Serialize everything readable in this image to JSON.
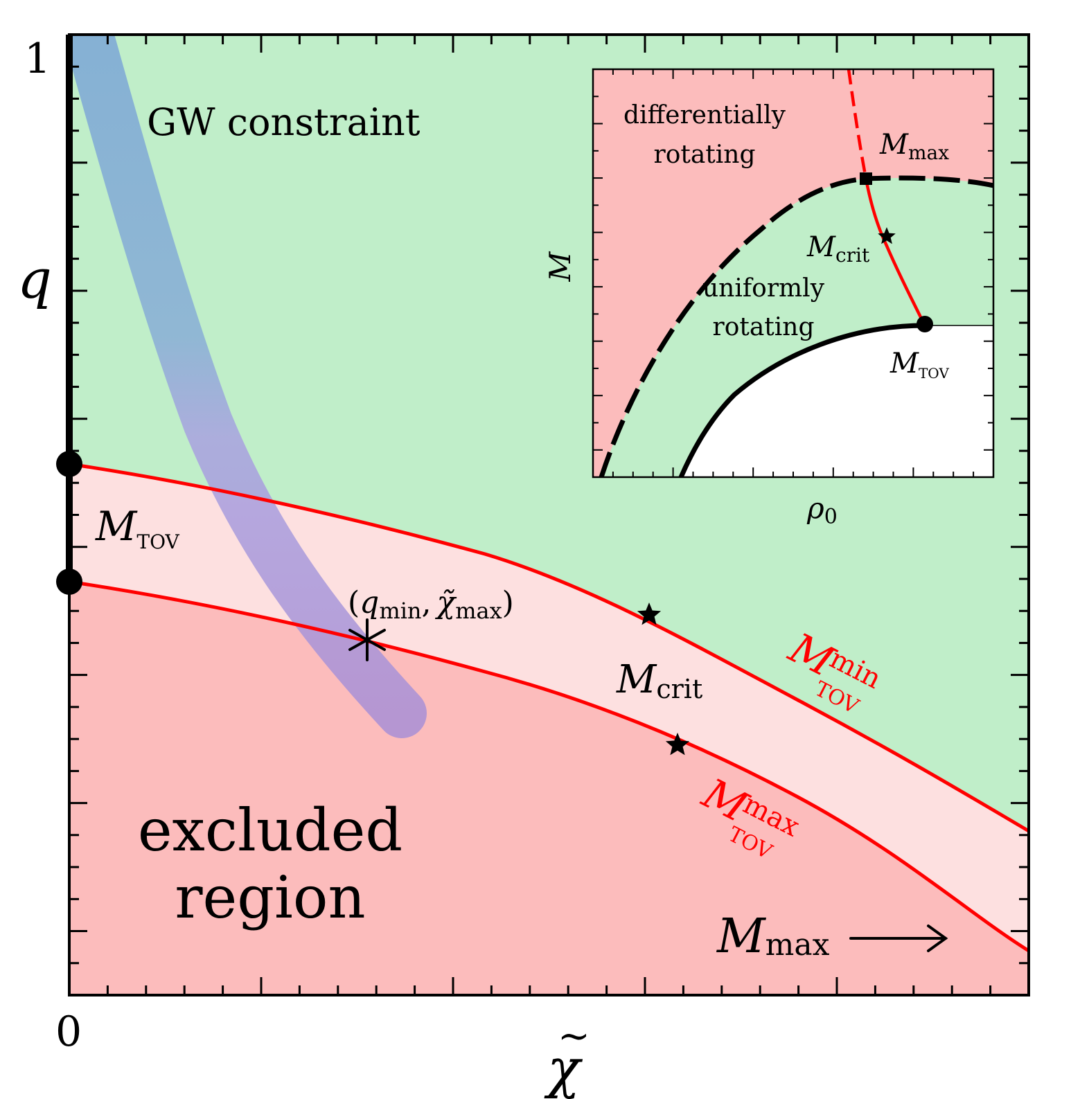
{
  "colors": {
    "allowed_green": "#c0eec9",
    "excluded_red": "#fcbcbc",
    "band_pink": "#fde0e0",
    "curve_red": "#ff0000",
    "gw_blue": "#7ba6d6",
    "gw_violet": "#a990d6",
    "axis_black": "#000000"
  },
  "main": {
    "y_axis": {
      "label": "q",
      "tick_top": "1",
      "tick_bottom": "0"
    },
    "x_axis": {
      "label_base": "χ",
      "label_accent": "~"
    },
    "region_labels": {
      "gw_constraint": "GW constraint",
      "excluded_line1": "excluded",
      "excluded_line2": "region"
    },
    "labels": {
      "m_tov_base": "M",
      "m_tov_sub": "TOV",
      "qmin_chimax": "(q",
      "qmin_sub": "min",
      "chi_sym": "χ̃",
      "chimax_sub": "max",
      "close_paren": ")",
      "comma": ",",
      "m_crit_base": "M",
      "m_crit_sub": "crit",
      "m_tov_min_base": "M",
      "m_tov_min_sup": "min",
      "m_tov_min_sub": "TOV",
      "m_tov_max_base": "M",
      "m_tov_max_sup": "max",
      "m_tov_max_sub": "TOV",
      "m_max_base": "M",
      "m_max_sub": "max",
      "arrow": "⟶"
    },
    "markers": [
      "asterisk",
      "star-upper",
      "star-lower",
      "dot-upper",
      "dot-lower"
    ]
  },
  "inset": {
    "y_label": "M",
    "x_label_base": "ρ",
    "x_label_sub": "0",
    "region_labels": {
      "diff_line1": "differentially",
      "diff_line2": "rotating",
      "unif_line1": "uniformly",
      "unif_line2": "rotating"
    },
    "point_labels": {
      "m_max_base": "M",
      "m_max_sub": "max",
      "m_crit_base": "M",
      "m_crit_sub": "crit",
      "m_tov_base": "M",
      "m_tov_sub": "TOV"
    }
  }
}
